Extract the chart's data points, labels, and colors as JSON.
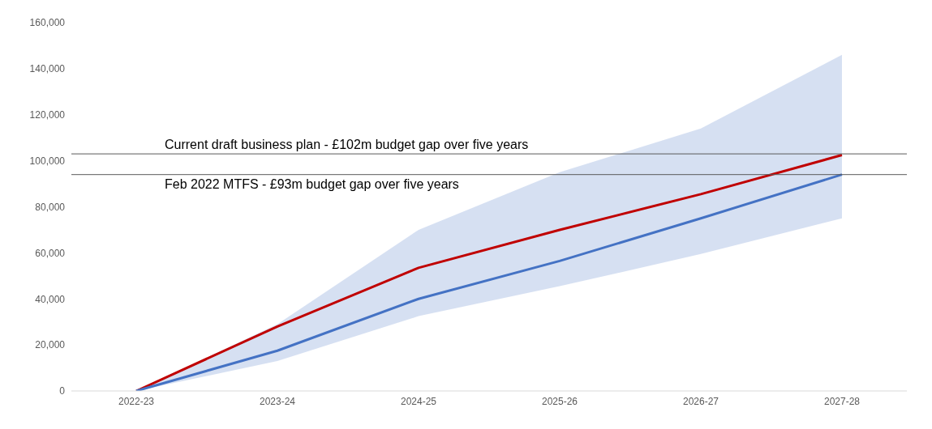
{
  "chart_data": {
    "type": "line",
    "categories": [
      "2022-23",
      "2023-24",
      "2024-25",
      "2025-26",
      "2026-27",
      "2027-28"
    ],
    "series": [
      {
        "color": "#c00000",
        "values": [
          0,
          28000,
          53500,
          70000,
          85500,
          102500
        ]
      },
      {
        "color": "#4472c4",
        "values": [
          0,
          17500,
          40000,
          56500,
          75000,
          94000
        ],
        "lower": [
          0,
          13000,
          32500,
          45500,
          59500,
          75000
        ],
        "upper": [
          0,
          29000,
          70000,
          95000,
          114000,
          146000
        ]
      }
    ],
    "ylim": [
      0,
      160000
    ],
    "yticks": [
      0,
      {
        "value": 20000,
        "label": "20,000"
      },
      {
        "value": 40000,
        "label": "40,000"
      },
      {
        "value": 60000,
        "label": "60,000"
      },
      {
        "value": 80000,
        "label": "80,000"
      },
      {
        "value": 100000,
        "label": "100,000"
      },
      {
        "value": 120000,
        "label": "120,000"
      },
      {
        "value": 140000,
        "label": "140,000"
      },
      {
        "value": 160000,
        "label": "160,000"
      }
    ],
    "ref_lines": [
      {
        "axis": "y",
        "value": 103000,
        "label": "Current draft business plan - £102m budget gap over five years",
        "color": "#595959"
      },
      {
        "axis": "y",
        "value": 94000,
        "label": "Feb 2022 MTFS - £93m budget gap over five years",
        "color": "#595959"
      }
    ],
    "grid": false,
    "legend": false,
    "marker": "none",
    "line_style": "solid"
  }
}
